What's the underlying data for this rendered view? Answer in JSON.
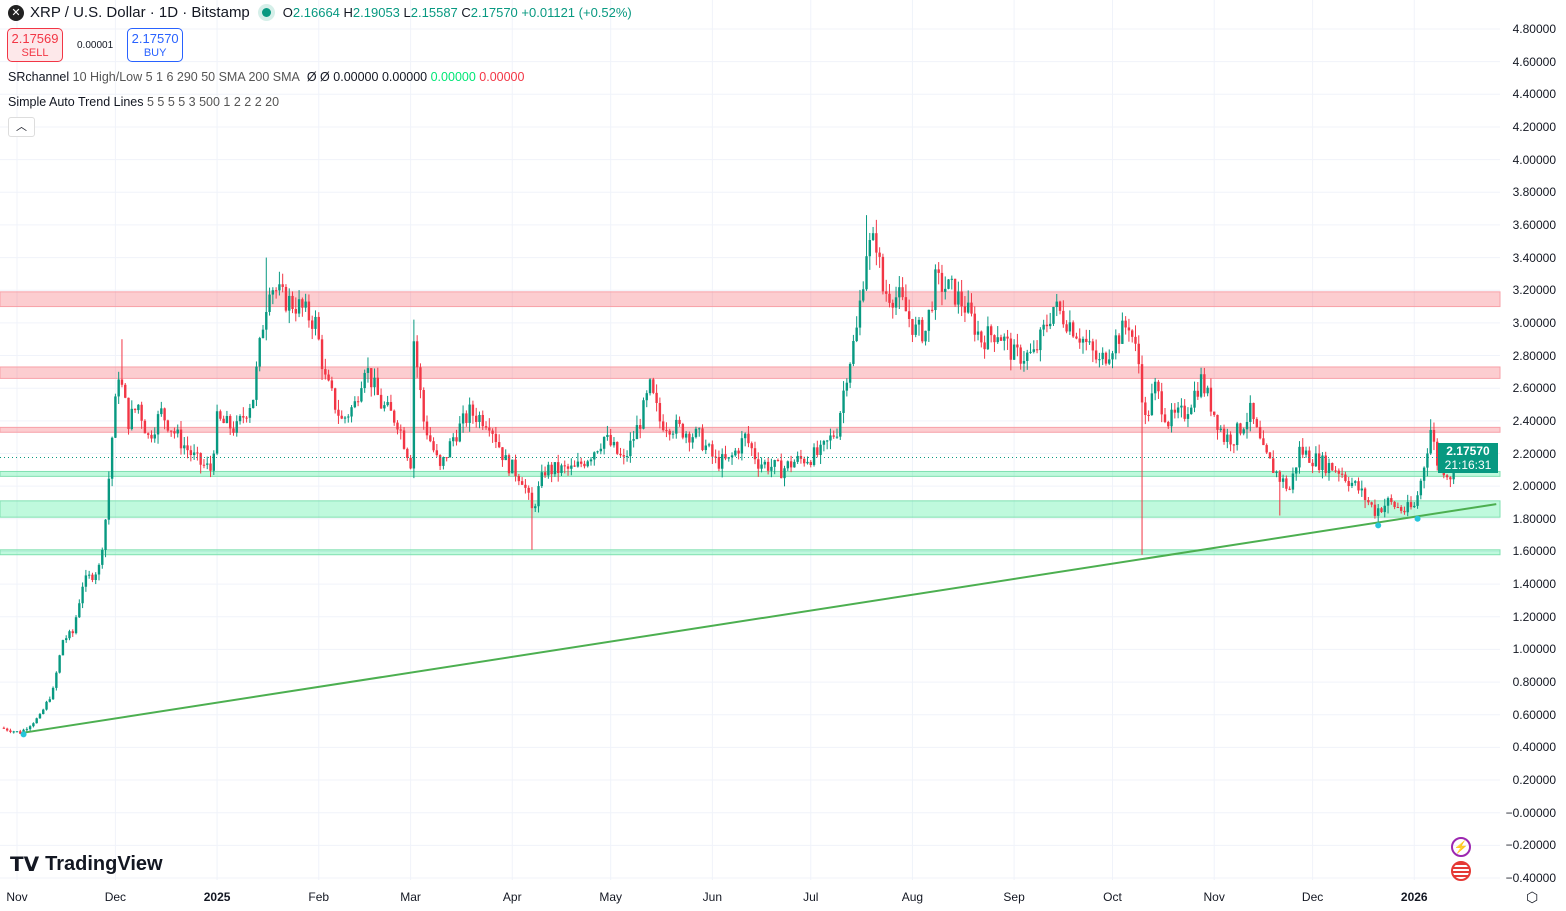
{
  "header": {
    "symbol_icon": "xrp-logo-icon",
    "title": "XRP / U.S. Dollar · 1D · Bitstamp",
    "status_color": "#089981",
    "open_label": "O",
    "open": "2.16664",
    "high_label": "H",
    "high": "2.19053",
    "low_label": "L",
    "low": "2.15587",
    "close_label": "C",
    "close": "2.17570",
    "change": "+0.01121 (+0.52%)"
  },
  "trade": {
    "sell_price": "2.17569",
    "sell_label": "SELL",
    "spread": "0.00001",
    "buy_price": "2.17570",
    "buy_label": "BUY"
  },
  "indicators": [
    {
      "name": "SRchannel",
      "params": "10 High/Low 5 1 6 290 50 SMA 200 SMA",
      "values": [
        "Ø",
        "Ø",
        "0.00000",
        "0.00000"
      ],
      "green": "0.00000",
      "red": "0.00000"
    },
    {
      "name": "Simple Auto Trend Lines",
      "params": "5 5 5 5 3 500 1 2 2 2 20"
    }
  ],
  "collapse_icon": "chevron-up-icon",
  "price_label": {
    "price": "2.17570",
    "countdown": "21:16:31"
  },
  "branding": "TradingView",
  "chart_data": {
    "type": "candlestick",
    "ylim": [
      -0.4,
      4.8
    ],
    "y_ticks": [
      "4.80000",
      "4.60000",
      "4.40000",
      "4.20000",
      "4.00000",
      "3.80000",
      "3.60000",
      "3.40000",
      "3.20000",
      "3.00000",
      "2.80000",
      "2.60000",
      "2.40000",
      "2.20000",
      "2.00000",
      "1.80000",
      "1.60000",
      "1.40000",
      "1.20000",
      "1.00000",
      "0.80000",
      "0.60000",
      "0.40000",
      "0.20000",
      "−0.00000",
      "−0.20000",
      "−0.40000"
    ],
    "x_ticks": [
      [
        "Nov",
        "2024-11-01"
      ],
      [
        "Dec",
        "2024-12-01"
      ],
      [
        "2025",
        "2025-01-01"
      ],
      [
        "Feb",
        "2025-02-01"
      ],
      [
        "Mar",
        "2025-03-01"
      ],
      [
        "Apr",
        "2025-04-01"
      ],
      [
        "May",
        "2025-05-01"
      ],
      [
        "Jun",
        "2025-06-01"
      ],
      [
        "Jul",
        "2025-07-01"
      ],
      [
        "Aug",
        "2025-08-01"
      ],
      [
        "Sep",
        "2025-09-01"
      ],
      [
        "Oct",
        "2025-10-01"
      ],
      [
        "Nov",
        "2025-11-01"
      ],
      [
        "Dec",
        "2025-12-01"
      ],
      [
        "2026",
        "2026-01-01"
      ]
    ],
    "grid": true,
    "colors": {
      "up": "#089981",
      "down": "#f23645",
      "trendline": "#4caf50"
    },
    "close_path": [
      [
        "2024-10-27",
        0.52
      ],
      [
        "2024-11-02",
        0.49
      ],
      [
        "2024-11-08",
        0.59
      ],
      [
        "2024-11-12",
        0.75
      ],
      [
        "2024-11-15",
        1.06
      ],
      [
        "2024-11-18",
        1.1
      ],
      [
        "2024-11-21",
        1.4
      ],
      [
        "2024-11-26",
        1.5
      ],
      [
        "2024-11-28",
        1.8
      ],
      [
        "2024-11-30",
        2.3
      ],
      [
        "2024-12-02",
        2.7
      ],
      [
        "2024-12-05",
        2.4
      ],
      [
        "2024-12-08",
        2.5
      ],
      [
        "2024-12-11",
        2.3
      ],
      [
        "2024-12-15",
        2.45
      ],
      [
        "2024-12-20",
        2.3
      ],
      [
        "2024-12-26",
        2.15
      ],
      [
        "2024-12-30",
        2.1
      ],
      [
        "2025-01-01",
        2.4
      ],
      [
        "2025-01-07",
        2.35
      ],
      [
        "2025-01-12",
        2.55
      ],
      [
        "2025-01-15",
        3.0
      ],
      [
        "2025-01-17",
        3.25
      ],
      [
        "2025-01-21",
        3.15
      ],
      [
        "2025-01-26",
        3.1
      ],
      [
        "2025-01-31",
        3.0
      ],
      [
        "2025-02-03",
        2.65
      ],
      [
        "2025-02-08",
        2.4
      ],
      [
        "2025-02-12",
        2.5
      ],
      [
        "2025-02-15",
        2.75
      ],
      [
        "2025-02-20",
        2.5
      ],
      [
        "2025-02-25",
        2.4
      ],
      [
        "2025-03-01",
        2.15
      ],
      [
        "2025-03-02",
        2.9
      ],
      [
        "2025-03-05",
        2.4
      ],
      [
        "2025-03-10",
        2.1
      ],
      [
        "2025-03-14",
        2.3
      ],
      [
        "2025-03-19",
        2.45
      ],
      [
        "2025-03-25",
        2.4
      ],
      [
        "2025-03-30",
        2.15
      ],
      [
        "2025-04-04",
        2.05
      ],
      [
        "2025-04-07",
        1.85
      ],
      [
        "2025-04-11",
        2.1
      ],
      [
        "2025-04-15",
        2.1
      ],
      [
        "2025-04-20",
        2.1
      ],
      [
        "2025-04-25",
        2.2
      ],
      [
        "2025-04-29",
        2.3
      ],
      [
        "2025-05-05",
        2.15
      ],
      [
        "2025-05-10",
        2.4
      ],
      [
        "2025-05-13",
        2.6
      ],
      [
        "2025-05-16",
        2.4
      ],
      [
        "2025-05-22",
        2.35
      ],
      [
        "2025-05-28",
        2.3
      ],
      [
        "2025-06-02",
        2.15
      ],
      [
        "2025-06-06",
        2.15
      ],
      [
        "2025-06-11",
        2.3
      ],
      [
        "2025-06-15",
        2.15
      ],
      [
        "2025-06-22",
        2.1
      ],
      [
        "2025-06-26",
        2.15
      ],
      [
        "2025-07-04",
        2.2
      ],
      [
        "2025-07-09",
        2.35
      ],
      [
        "2025-07-12",
        2.7
      ],
      [
        "2025-07-15",
        2.95
      ],
      [
        "2025-07-18",
        3.45
      ],
      [
        "2025-07-21",
        3.5
      ],
      [
        "2025-07-23",
        3.2
      ],
      [
        "2025-07-28",
        3.15
      ],
      [
        "2025-08-02",
        2.95
      ],
      [
        "2025-08-05",
        2.95
      ],
      [
        "2025-08-08",
        3.25
      ],
      [
        "2025-08-13",
        3.2
      ],
      [
        "2025-08-17",
        3.1
      ],
      [
        "2025-08-22",
        2.9
      ],
      [
        "2025-08-27",
        2.95
      ],
      [
        "2025-09-01",
        2.8
      ],
      [
        "2025-09-07",
        2.8
      ],
      [
        "2025-09-13",
        3.1
      ],
      [
        "2025-09-18",
        3.0
      ],
      [
        "2025-09-22",
        2.9
      ],
      [
        "2025-09-27",
        2.75
      ],
      [
        "2025-10-02",
        2.9
      ],
      [
        "2025-10-06",
        3.0
      ],
      [
        "2025-10-09",
        2.75
      ],
      [
        "2025-10-11",
        2.4
      ],
      [
        "2025-10-14",
        2.6
      ],
      [
        "2025-10-18",
        2.4
      ],
      [
        "2025-10-23",
        2.45
      ],
      [
        "2025-10-28",
        2.65
      ],
      [
        "2025-10-31",
        2.5
      ],
      [
        "2025-11-04",
        2.3
      ],
      [
        "2025-11-07",
        2.3
      ],
      [
        "2025-11-12",
        2.45
      ],
      [
        "2025-11-16",
        2.2
      ],
      [
        "2025-11-21",
        2.05
      ],
      [
        "2025-11-24",
        1.98
      ],
      [
        "2025-11-27",
        2.22
      ],
      [
        "2025-12-03",
        2.15
      ],
      [
        "2025-12-09",
        2.1
      ],
      [
        "2025-12-15",
        1.98
      ],
      [
        "2025-12-20",
        1.85
      ],
      [
        "2025-12-24",
        1.9
      ],
      [
        "2025-12-29",
        1.85
      ],
      [
        "2026-01-01",
        1.87
      ],
      [
        "2026-01-03",
        2.03
      ],
      [
        "2026-01-06",
        2.35
      ],
      [
        "2026-01-08",
        2.15
      ],
      [
        "2026-01-12",
        2.07
      ],
      [
        "2026-01-14",
        2.1757
      ]
    ],
    "wick_extremes": [
      [
        "2024-12-03",
        2.9
      ],
      [
        "2025-01-16",
        3.4
      ],
      [
        "2025-03-02",
        3.02
      ],
      [
        "2025-04-07",
        1.61
      ],
      [
        "2025-07-18",
        3.66
      ],
      [
        "2025-10-10",
        1.58
      ],
      [
        "2025-11-21",
        1.82
      ],
      [
        "2026-01-06",
        2.41
      ]
    ],
    "zones": [
      {
        "kind": "resistance",
        "low": 3.1,
        "high": 3.19
      },
      {
        "kind": "resistance",
        "low": 2.66,
        "high": 2.73
      },
      {
        "kind": "resistance",
        "low": 2.33,
        "high": 2.36
      },
      {
        "kind": "support",
        "low": 2.06,
        "high": 2.09
      },
      {
        "kind": "support",
        "low": 1.81,
        "high": 1.91
      },
      {
        "kind": "support",
        "low": 1.58,
        "high": 1.61
      }
    ],
    "trendline": [
      [
        "2024-11-03",
        0.49
      ],
      [
        "2026-01-26",
        1.89
      ]
    ],
    "pivots": [
      [
        "2024-11-03",
        0.48
      ],
      [
        "2025-12-21",
        1.76
      ],
      [
        "2026-01-02",
        1.8
      ]
    ],
    "last_price": 2.1757
  }
}
